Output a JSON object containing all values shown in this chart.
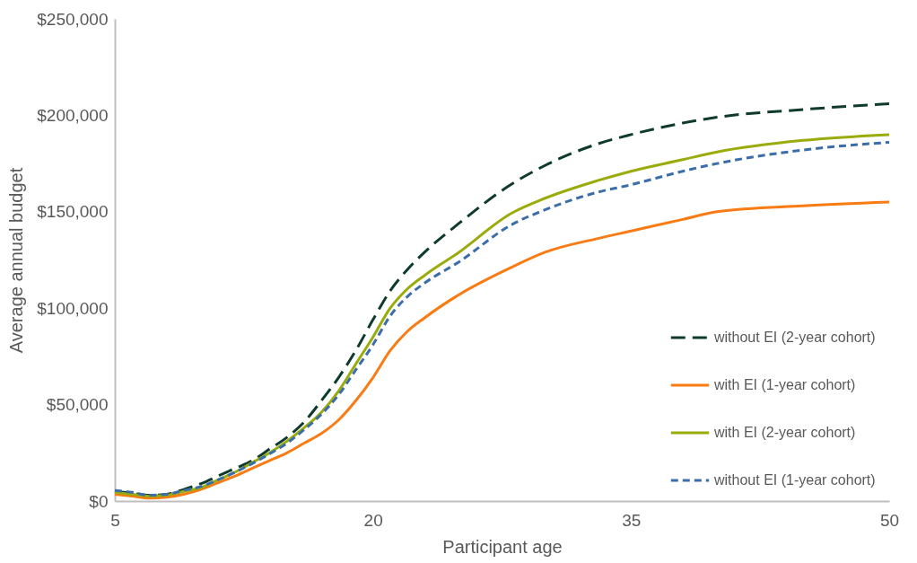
{
  "chart_data": {
    "type": "line",
    "xlabel": "Participant age",
    "ylabel": "Average annual budget",
    "x": [
      5,
      6,
      7,
      8,
      9,
      10,
      11,
      12,
      13,
      14,
      15,
      16,
      17,
      18,
      19,
      20,
      21,
      22,
      23,
      25,
      28,
      30,
      33,
      35,
      38,
      40,
      45,
      50
    ],
    "series": [
      {
        "name": "without EI (2-year cohort)",
        "color": "#0e3b2e",
        "line_style": "dashed",
        "values": [
          5000,
          4000,
          3000,
          3500,
          6000,
          9000,
          13000,
          17000,
          21000,
          27000,
          33000,
          41000,
          52000,
          64000,
          78000,
          94000,
          109000,
          120000,
          129000,
          144000,
          164000,
          174000,
          185000,
          190000,
          196000,
          199000,
          203000,
          206000
        ]
      },
      {
        "name": "with EI (1-year cohort)",
        "color": "#f97b13",
        "line_style": "solid",
        "values": [
          3500,
          2500,
          1500,
          2000,
          3500,
          6000,
          9500,
          13000,
          17000,
          21000,
          25000,
          30000,
          35000,
          42000,
          52000,
          64000,
          78000,
          88000,
          95000,
          107000,
          121000,
          129000,
          136000,
          140000,
          146000,
          150000,
          153000,
          155000
        ]
      },
      {
        "name": "with EI (2-year cohort)",
        "color": "#9aab0c",
        "line_style": "solid",
        "values": [
          4500,
          3500,
          2500,
          3000,
          5000,
          7000,
          11000,
          15000,
          20000,
          25000,
          31000,
          38000,
          46000,
          57000,
          71000,
          85000,
          100000,
          110000,
          117000,
          129000,
          149000,
          157000,
          166000,
          171000,
          177000,
          181000,
          187000,
          190000
        ]
      },
      {
        "name": "without EI (1-year cohort)",
        "color": "#3b6ea8",
        "line_style": "dotted",
        "values": [
          5500,
          4500,
          3000,
          3500,
          5500,
          7500,
          11000,
          15000,
          19500,
          24500,
          30000,
          37000,
          45000,
          55000,
          68000,
          81000,
          96000,
          106000,
          113000,
          124000,
          143000,
          151000,
          160000,
          164000,
          171000,
          175000,
          182000,
          186000
        ]
      }
    ],
    "xlim": [
      5,
      50
    ],
    "xticks": [
      5,
      20,
      35,
      50
    ],
    "ylim": [
      0,
      250000
    ],
    "yticks": [
      {
        "value": 0,
        "label": "$0"
      },
      {
        "value": 50000,
        "label": "$50,000"
      },
      {
        "value": 100000,
        "label": "$100,000"
      },
      {
        "value": 150000,
        "label": "$150,000"
      },
      {
        "value": 200000,
        "label": "$200,000"
      },
      {
        "value": 250000,
        "label": "$250,000"
      }
    ],
    "legend": "bottom right"
  }
}
